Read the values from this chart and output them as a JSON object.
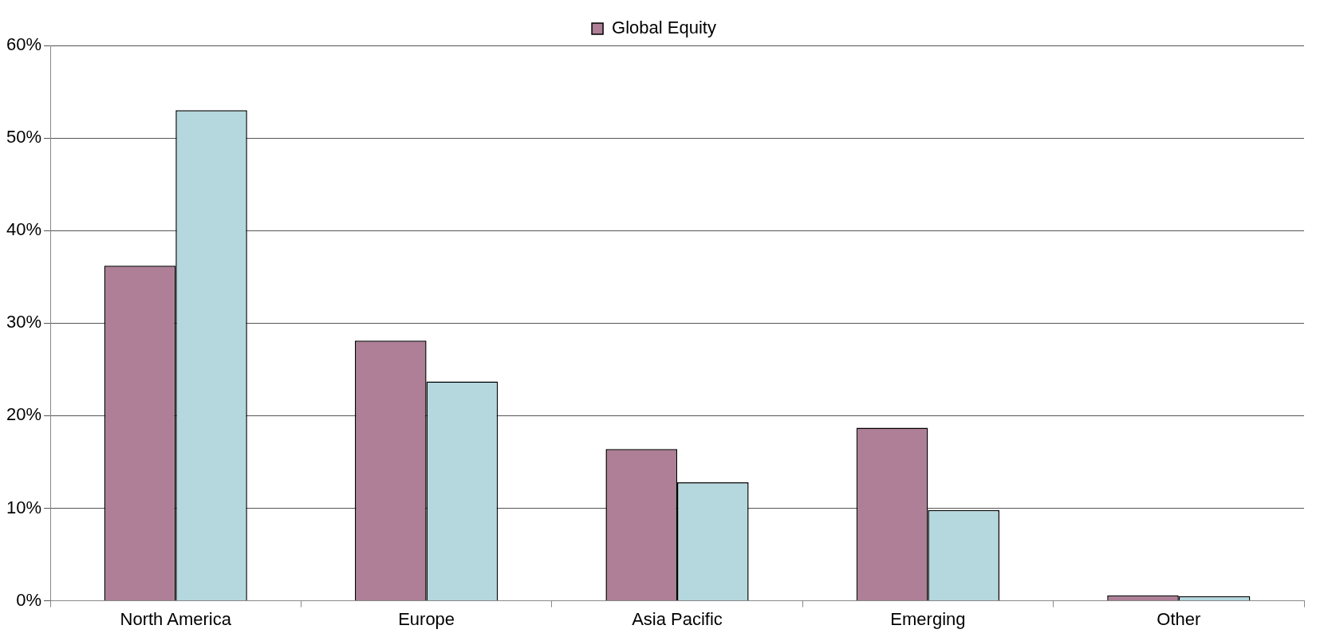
{
  "chart_data": {
    "type": "bar",
    "categories": [
      "North America",
      "Europe",
      "Asia Pacific",
      "Emerging",
      "Other"
    ],
    "series": [
      {
        "name": "Global Equity",
        "color": "#ae7f96",
        "values": [
          36.2,
          28.1,
          16.4,
          18.7,
          0.6
        ]
      },
      {
        "color": "#b4d8de",
        "values": [
          53.0,
          23.7,
          12.8,
          9.8,
          0.5
        ]
      }
    ],
    "ylim": [
      0,
      60
    ],
    "yticks": [
      {
        "value": 0,
        "label": "0%"
      },
      {
        "value": 10,
        "label": "10%"
      },
      {
        "value": 20,
        "label": "20%"
      },
      {
        "value": 30,
        "label": "30%"
      },
      {
        "value": 40,
        "label": "40%"
      },
      {
        "value": 50,
        "label": "50%"
      },
      {
        "value": 60,
        "label": "60%"
      }
    ],
    "grid": "y",
    "legend": "top"
  }
}
